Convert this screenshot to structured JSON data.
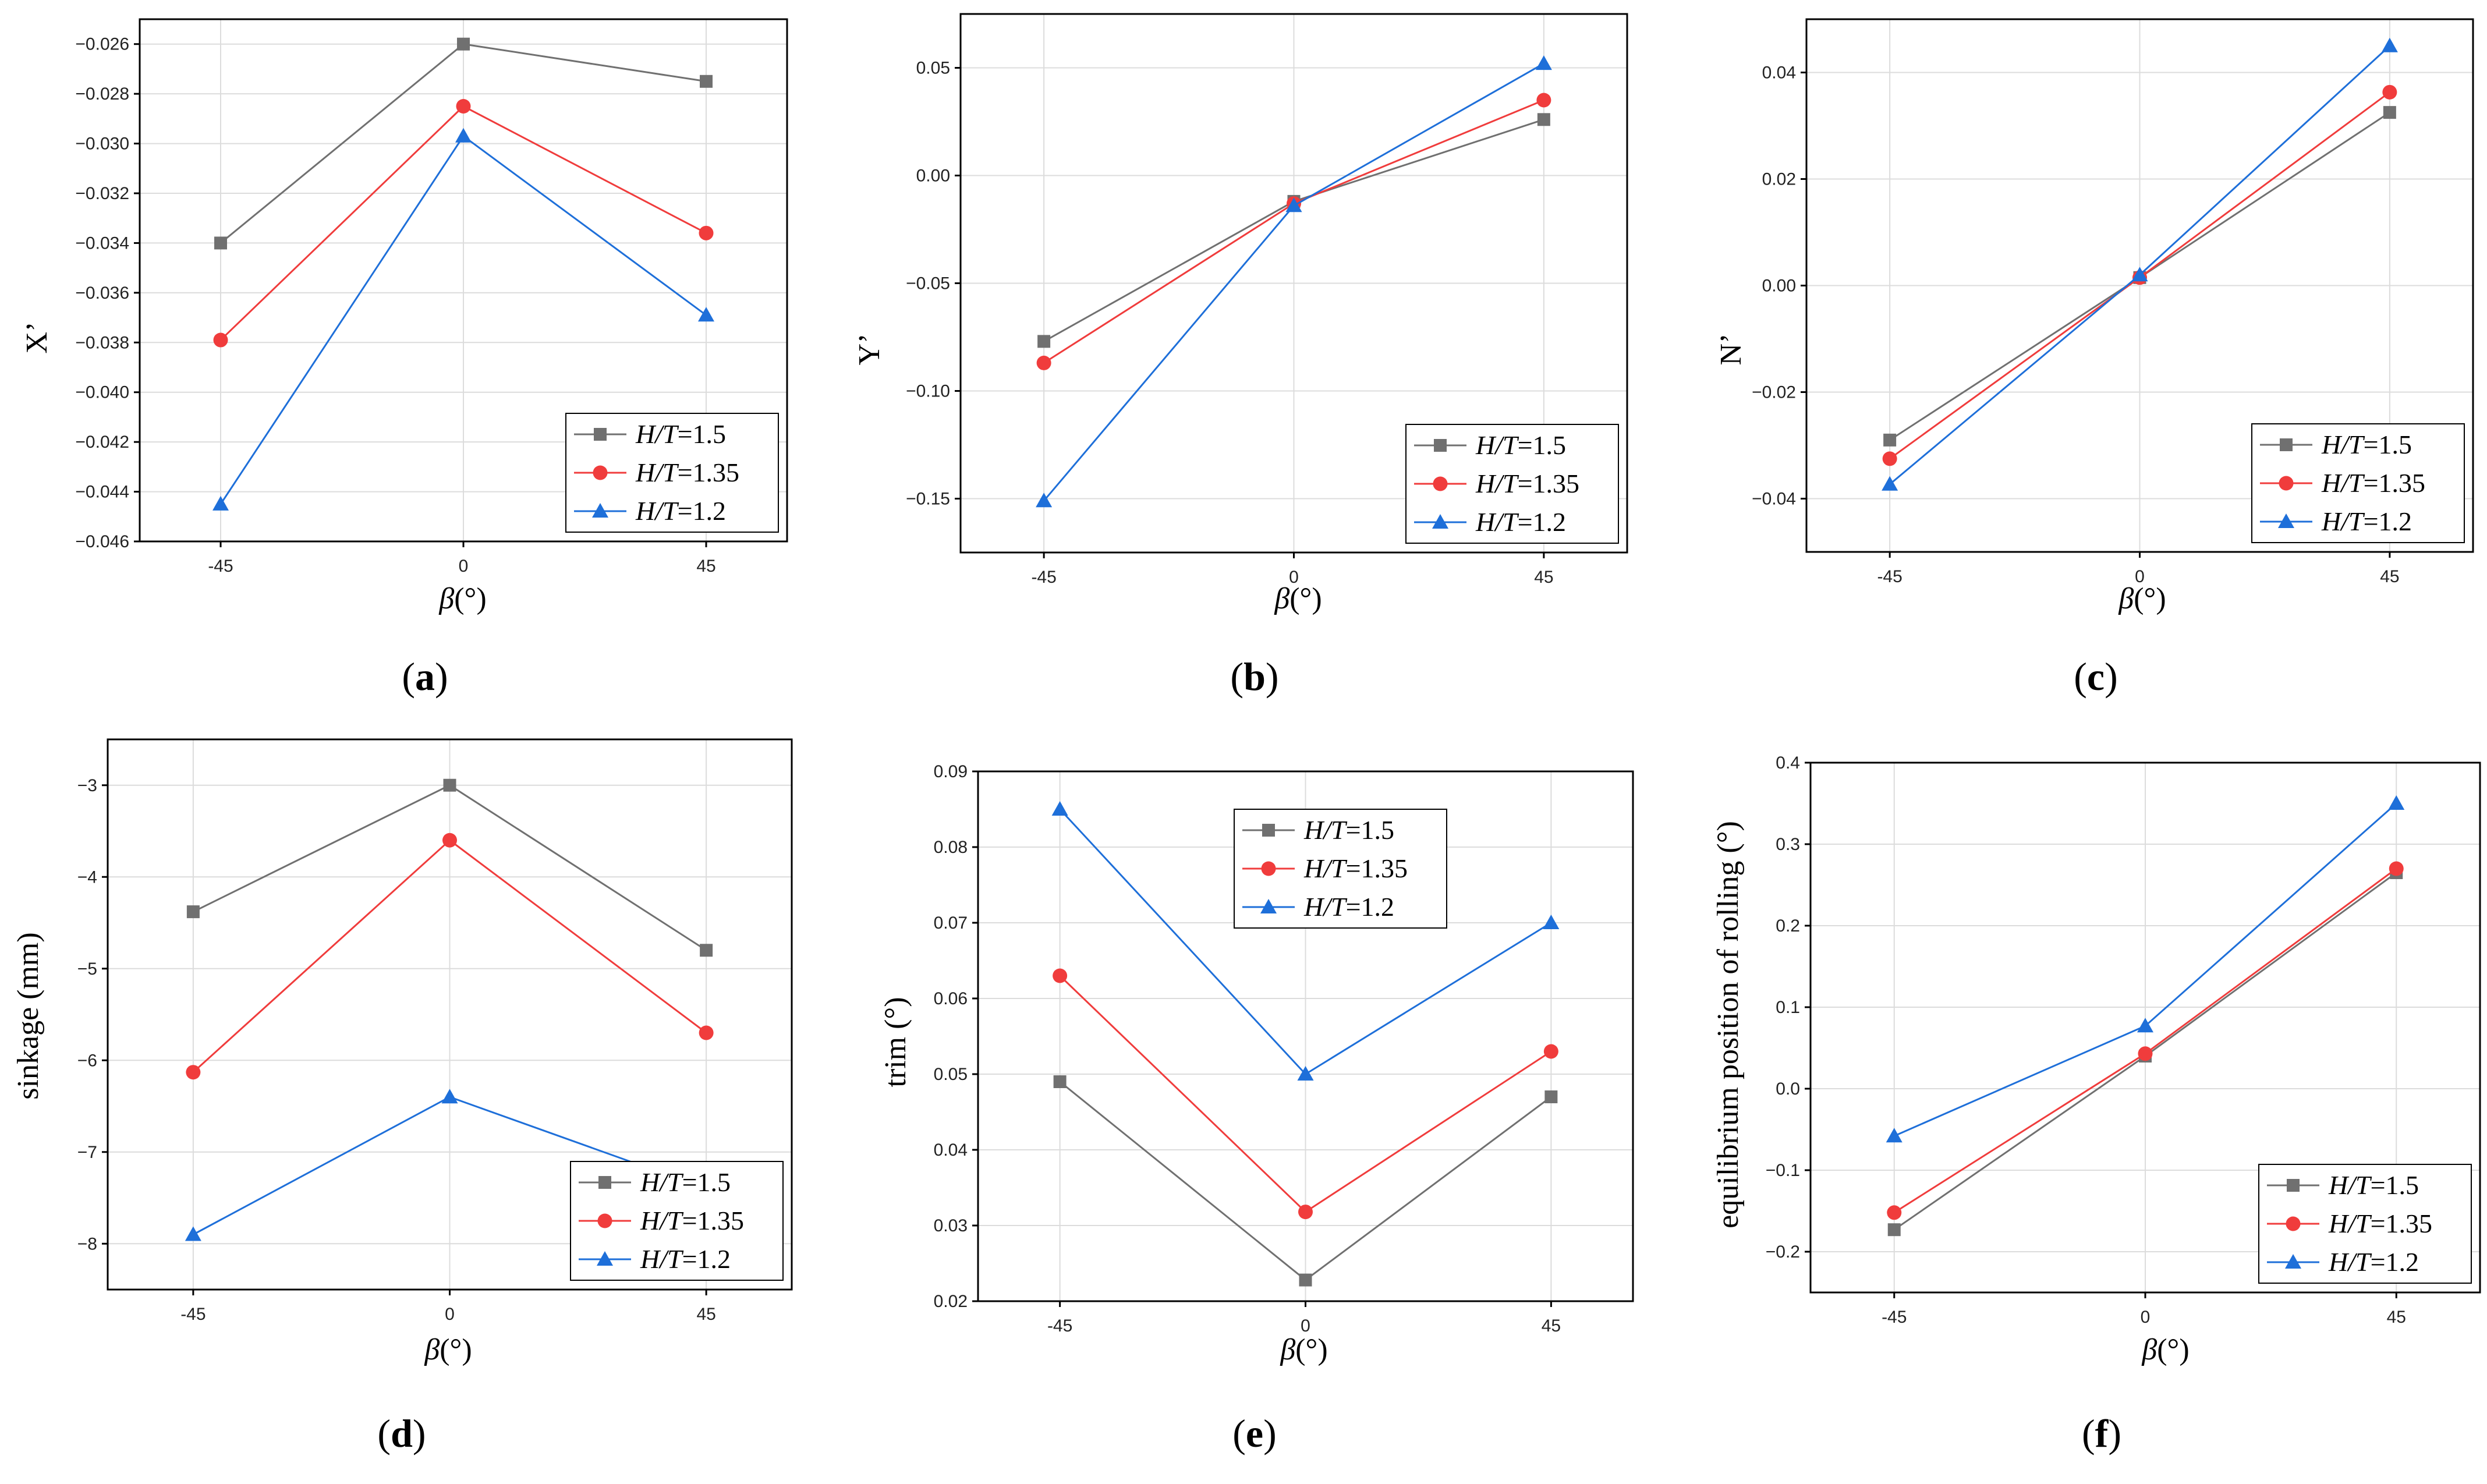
{
  "series_styles": [
    {
      "color": "#707070",
      "marker": "square"
    },
    {
      "color": "#f03c3c",
      "marker": "circle"
    },
    {
      "color": "#1e6fd9",
      "marker": "triangle"
    }
  ],
  "legend_labels": [
    {
      "italic": "H/T",
      "value": "=1.5"
    },
    {
      "italic": "H/T",
      "value": "=1.35"
    },
    {
      "italic": "H/T",
      "value": "=1.2"
    }
  ],
  "chart_data": [
    {
      "panel": "(a)",
      "panel_letter": "a",
      "type": "line",
      "x": [
        -45,
        0,
        45
      ],
      "xticks": [
        "-45",
        "0",
        "45"
      ],
      "xlabel": "β(°)",
      "ylabel": "X’",
      "ylim": [
        -0.046,
        -0.025
      ],
      "yticks": [
        -0.046,
        -0.044,
        -0.042,
        -0.04,
        -0.038,
        -0.036,
        -0.034,
        -0.032,
        -0.03,
        -0.028,
        -0.026
      ],
      "ytick_labels": [
        "−0.046",
        "−0.044",
        "−0.042",
        "−0.040",
        "−0.038",
        "−0.036",
        "−0.034",
        "−0.032",
        "−0.030",
        "−0.028",
        "−0.026"
      ],
      "legend_position": "bottom-right",
      "series": [
        {
          "name": "H/T=1.5",
          "values": [
            -0.034,
            -0.026,
            -0.0275
          ]
        },
        {
          "name": "H/T=1.35",
          "values": [
            -0.0379,
            -0.0285,
            -0.0336
          ]
        },
        {
          "name": "H/T=1.2",
          "values": [
            -0.0445,
            -0.0297,
            -0.0369
          ]
        }
      ]
    },
    {
      "panel": "(b)",
      "panel_letter": "b",
      "type": "line",
      "x": [
        -45,
        0,
        45
      ],
      "xticks": [
        "-45",
        "0",
        "45"
      ],
      "xlabel": "β(°)",
      "ylabel": "Y’",
      "ylim": [
        -0.175,
        0.075
      ],
      "yticks": [
        -0.15,
        -0.1,
        -0.05,
        0.0,
        0.05
      ],
      "ytick_labels": [
        "−0.15",
        "−0.10",
        "−0.05",
        "0.00",
        "0.05"
      ],
      "legend_position": "bottom-right",
      "series": [
        {
          "name": "H/T=1.5",
          "values": [
            -0.077,
            -0.012,
            0.026
          ]
        },
        {
          "name": "H/T=1.35",
          "values": [
            -0.087,
            -0.013,
            0.035
          ]
        },
        {
          "name": "H/T=1.2",
          "values": [
            -0.151,
            -0.014,
            0.052
          ]
        }
      ]
    },
    {
      "panel": "(c)",
      "panel_letter": "c",
      "type": "line",
      "x": [
        -45,
        0,
        45
      ],
      "xticks": [
        "-45",
        "0",
        "45"
      ],
      "xlabel": "β(°)",
      "ylabel": "N’",
      "ylim": [
        -0.05,
        0.05
      ],
      "yticks": [
        -0.04,
        -0.02,
        0.0,
        0.02,
        0.04
      ],
      "ytick_labels": [
        "−0.04",
        "−0.02",
        "0.00",
        "0.02",
        "0.04"
      ],
      "legend_position": "bottom-right",
      "series": [
        {
          "name": "H/T=1.5",
          "values": [
            -0.029,
            0.0015,
            0.0325
          ]
        },
        {
          "name": "H/T=1.35",
          "values": [
            -0.0325,
            0.0015,
            0.0363
          ]
        },
        {
          "name": "H/T=1.2",
          "values": [
            -0.0373,
            0.002,
            0.045
          ]
        }
      ]
    },
    {
      "panel": "(d)",
      "panel_letter": "d",
      "type": "line",
      "x": [
        -45,
        0,
        45
      ],
      "xticks": [
        "-45",
        "0",
        "45"
      ],
      "xlabel": "β(°)",
      "ylabel": "sinkage (mm)",
      "ylim": [
        -8.5,
        -2.5
      ],
      "yticks": [
        -8,
        -7,
        -6,
        -5,
        -4,
        -3
      ],
      "ytick_labels": [
        "−8",
        "−7",
        "−6",
        "−5",
        "−4",
        "−3"
      ],
      "legend_position": "bottom-right",
      "series": [
        {
          "name": "H/T=1.5",
          "values": [
            -4.38,
            -3.0,
            -4.8
          ]
        },
        {
          "name": "H/T=1.35",
          "values": [
            -6.13,
            -3.6,
            -5.7
          ]
        },
        {
          "name": "H/T=1.2",
          "values": [
            -7.9,
            -6.4,
            -7.4
          ]
        }
      ]
    },
    {
      "panel": "(e)",
      "panel_letter": "e",
      "type": "line",
      "x": [
        -45,
        0,
        45
      ],
      "xticks": [
        "-45",
        "0",
        "45"
      ],
      "xlabel": "β(°)",
      "ylabel": "trim (°)",
      "ylim": [
        0.02,
        0.09
      ],
      "yticks": [
        0.02,
        0.03,
        0.04,
        0.05,
        0.06,
        0.07,
        0.08,
        0.09
      ],
      "ytick_labels": [
        "0.02",
        "0.03",
        "0.04",
        "0.05",
        "0.06",
        "0.07",
        "0.08",
        "0.09"
      ],
      "legend_position": "top-center",
      "series": [
        {
          "name": "H/T=1.5",
          "values": [
            0.049,
            0.0228,
            0.047
          ]
        },
        {
          "name": "H/T=1.35",
          "values": [
            0.063,
            0.0318,
            0.053
          ]
        },
        {
          "name": "H/T=1.2",
          "values": [
            0.085,
            0.05,
            0.07
          ]
        }
      ]
    },
    {
      "panel": "(f)",
      "panel_letter": "f",
      "type": "line",
      "x": [
        -45,
        0,
        45
      ],
      "xticks": [
        "-45",
        "0",
        "45"
      ],
      "xlabel": "β(°)",
      "ylabel": "equilibrium position of rolling (°)",
      "ylim": [
        -0.25,
        0.4
      ],
      "yticks": [
        -0.2,
        -0.1,
        0.0,
        0.1,
        0.2,
        0.3,
        0.4
      ],
      "ytick_labels": [
        "−0.2",
        "−0.1",
        "0.0",
        "0.1",
        "0.2",
        "0.3",
        "0.4"
      ],
      "legend_position": "bottom-right",
      "series": [
        {
          "name": "H/T=1.5",
          "values": [
            -0.173,
            0.04,
            0.265
          ]
        },
        {
          "name": "H/T=1.35",
          "values": [
            -0.152,
            0.043,
            0.27
          ]
        },
        {
          "name": "H/T=1.2",
          "values": [
            -0.058,
            0.077,
            0.35
          ]
        }
      ]
    }
  ]
}
